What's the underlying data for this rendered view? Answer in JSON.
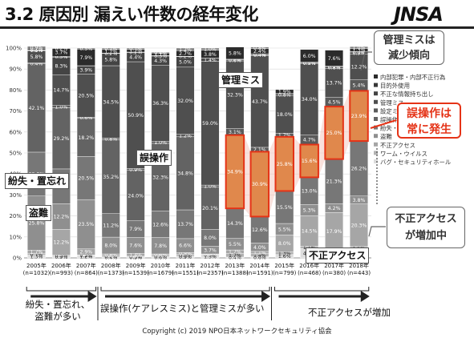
{
  "slide": {
    "title": "3.2 原因別 漏えい件数の経年変化",
    "logo": "JNSA",
    "copyright": "Copyright (c) 2019 NPO日本ネットワークセキュリティ協会"
  },
  "callouts": {
    "admin": [
      "管理ミスは",
      "減少傾向"
    ],
    "misop": [
      "誤操作は",
      "常に発生"
    ],
    "unauth": [
      "不正アクセス",
      "が増加中"
    ]
  },
  "insets": {
    "loss": "紛失・置忘れ",
    "theft": "盗難",
    "misop": "誤操作",
    "admin": "管理ミス",
    "unauth": "不正アクセス"
  },
  "arrows": {
    "a1_line1": "紛失・置忘れ、",
    "a1_line2": "盗難が多い",
    "a2": "誤操作(ケアレスミス)と管理ミスが多い",
    "a3": "不正アクセスが増加"
  },
  "colors": {
    "highlight": "#e53317",
    "highlight_fill": "#e8853f",
    "band": "#f4c9c0"
  },
  "chart_data": {
    "type": "bar",
    "stacked": true,
    "percent": true,
    "ylim": [
      0,
      100
    ],
    "yticks": [
      "0%",
      "10%",
      "20%",
      "30%",
      "40%",
      "50%",
      "60%",
      "70%",
      "80%",
      "90%",
      "100%"
    ],
    "categories": [
      "2005年",
      "2006年",
      "2007年",
      "2008年",
      "2009年",
      "2010年",
      "2011年",
      "2012年",
      "2013年",
      "2014年",
      "2015年",
      "2016年",
      "2017年",
      "2018年"
    ],
    "counts": [
      "(n=1032)",
      "(n=993)",
      "(n=864)",
      "(n=1373)",
      "(n=1539)",
      "(n=1679)",
      "(n=1551)",
      "(n=2357)",
      "(n=1388)",
      "(n=1591)",
      "(n=799)",
      "(n=468)",
      "(n=380)",
      "(n=443)"
    ],
    "series": [
      {
        "name": "バグ・セキュリティホール",
        "color": "#dddddd",
        "values": [
          1.3,
          0.9,
          1.2,
          0.4,
          0.5,
          0.6,
          0.9,
          1.3,
          0.4,
          0.6,
          1.6,
          4.5,
          2.6,
          3.8
        ]
      },
      {
        "name": "ワーム・ウイルス",
        "color": "#b2b2b2",
        "values": [
          0.7,
          0.5,
          0.2,
          0.7,
          0.3,
          0.7,
          0.8,
          0.3,
          1.7,
          1.4,
          1.3,
          1.1,
          1.1,
          1.6
        ]
      },
      {
        "name": "不正アクセス",
        "color": "#a6a6a6",
        "values": [
          1.7,
          12.2,
          2.9,
          0.8,
          1.4,
          0.6,
          0.9,
          0.3,
          1.7,
          1.1,
          8.0,
          14.5,
          17.9,
          20.3
        ]
      },
      {
        "name": "盗難",
        "color": "#8f8f8f",
        "values": [
          25.8,
          12.2,
          23.5,
          8.0,
          7.6,
          7.8,
          6.6,
          3.7,
          5.5,
          4.0,
          5.5,
          5.3,
          4.2,
          3.8
        ]
      },
      {
        "name": "紛失・置忘れ",
        "color": "#777777",
        "values": [
          20.9,
          16.6,
          20.5,
          11.2,
          7.9,
          12.6,
          13.7,
          8.0,
          14.3,
          12.6,
          15.5,
          13.0,
          21.3,
          26.2
        ]
      },
      {
        "name": "誤操作",
        "color": "#636363",
        "values": [
          42.1,
          29.2,
          18.2,
          35.2,
          24.0,
          32.3,
          34.8,
          20.1,
          34.9,
          30.9,
          25.8,
          15.6,
          25.0,
          23.9
        ]
      },
      {
        "name": "設定ミス",
        "color": "#5a5a5a",
        "values": [
          0.4,
          1.0,
          0.6,
          0.8,
          0.9,
          1.0,
          1.2,
          1.0,
          3.1,
          2.1,
          1.7,
          4.7,
          4.5,
          5.4
        ]
      },
      {
        "name": "管理ミス",
        "color": "#4f4f4f",
        "values": [
          5.8,
          14.7,
          20.5,
          34.5,
          50.9,
          36.3,
          32.0,
          59.0,
          32.3,
          43.7,
          18.0,
          34.0,
          13.7,
          12.2
        ]
      },
      {
        "name": "不正な情報持ち出し",
        "color": "#444444",
        "values": [
          0.3,
          8.3,
          3.9,
          5.8,
          4.4,
          4.3,
          5.0,
          1.4,
          0.6,
          0.4,
          0.8,
          0.2,
          0.8,
          0.9
        ]
      },
      {
        "name": "目的外使用",
        "color": "#383838",
        "values": [
          0.2,
          0.5,
          0.1,
          0.2,
          0.2,
          0.3,
          0.2,
          0.1,
          0.2,
          0.5,
          0.1,
          0.4,
          0.3,
          0.3
        ]
      },
      {
        "name": "内部犯罪・内部不正行為",
        "color": "#2b2b2b",
        "values": [
          0.7,
          3.7,
          7.9,
          1.7,
          1.2,
          1.1,
          2.7,
          3.8,
          5.8,
          2.4,
          1.9,
          6.0,
          7.6,
          1.3
        ]
      },
      {
        "name": "その他",
        "color": "#808080",
        "values": [
          0.9,
          0.2,
          0.5,
          0.7,
          0.7,
          0.4,
          1.2,
          1.0,
          0.0,
          0.8,
          0.0,
          0.0,
          0.0,
          1.0
        ]
      }
    ],
    "legend_labels": [
      "内部犯罪・内部不正行為",
      "目的外使用",
      "不正な情報持ち出し",
      "管理ミス",
      "設定ミス",
      "誤操作",
      "紛失・置忘れ",
      "盗難",
      "不正アクセス",
      "ワーム・ウイルス",
      "バグ・セキュリティホール"
    ],
    "legend_position": "right"
  }
}
